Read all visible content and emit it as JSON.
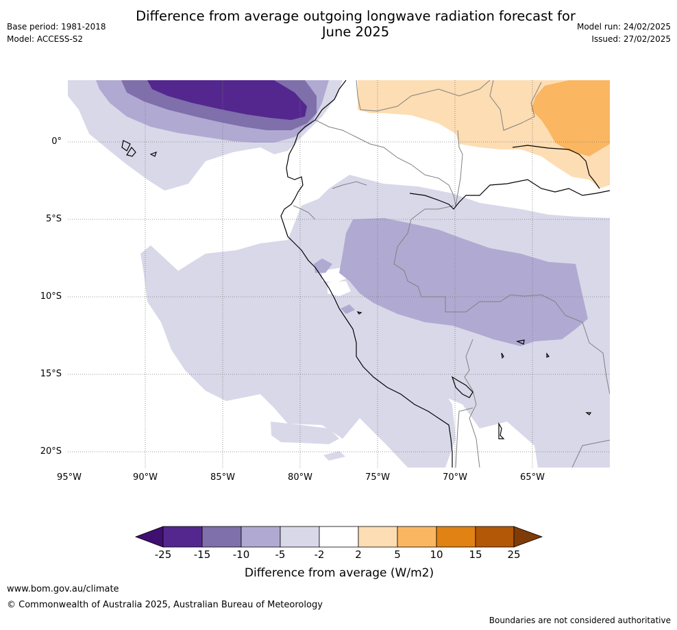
{
  "header": {
    "title_line1": "Difference from average outgoing longwave radiation forecast for",
    "title_line2": "June 2025",
    "base_period": "Base period: 1981-2018",
    "model": "Model: ACCESS-S2",
    "model_run": "Model run: 24/02/2025",
    "issued": "Issued: 27/02/2025"
  },
  "map": {
    "lat_labels": [
      "0°",
      "5°S",
      "10°S",
      "15°S",
      "20°S"
    ],
    "lon_labels": [
      "95°W",
      "90°W",
      "85°W",
      "80°W",
      "75°W",
      "70°W",
      "65°W"
    ],
    "extent": {
      "lon_min": -95,
      "lon_max": -60,
      "lat_min": -21,
      "lat_max": 4
    }
  },
  "colorbar": {
    "ticks": [
      "-25",
      "-15",
      "-10",
      "-5",
      "-2",
      "2",
      "5",
      "10",
      "15",
      "25"
    ],
    "colors": [
      "#3f0f72",
      "#54278f",
      "#7f6fab",
      "#b0aad2",
      "#d8d8e9",
      "#ffffff",
      "#fdddb3",
      "#fbb661",
      "#e08214",
      "#b35806",
      "#7f3b08"
    ],
    "title": "Difference from average (W/m2)"
  },
  "footer": {
    "url": "www.bom.gov.au/climate",
    "copyright": "© Commonwealth of Australia 2025, Australian Bureau of Meteorology",
    "disclaimer": "Boundaries are not considered authoritative"
  }
}
